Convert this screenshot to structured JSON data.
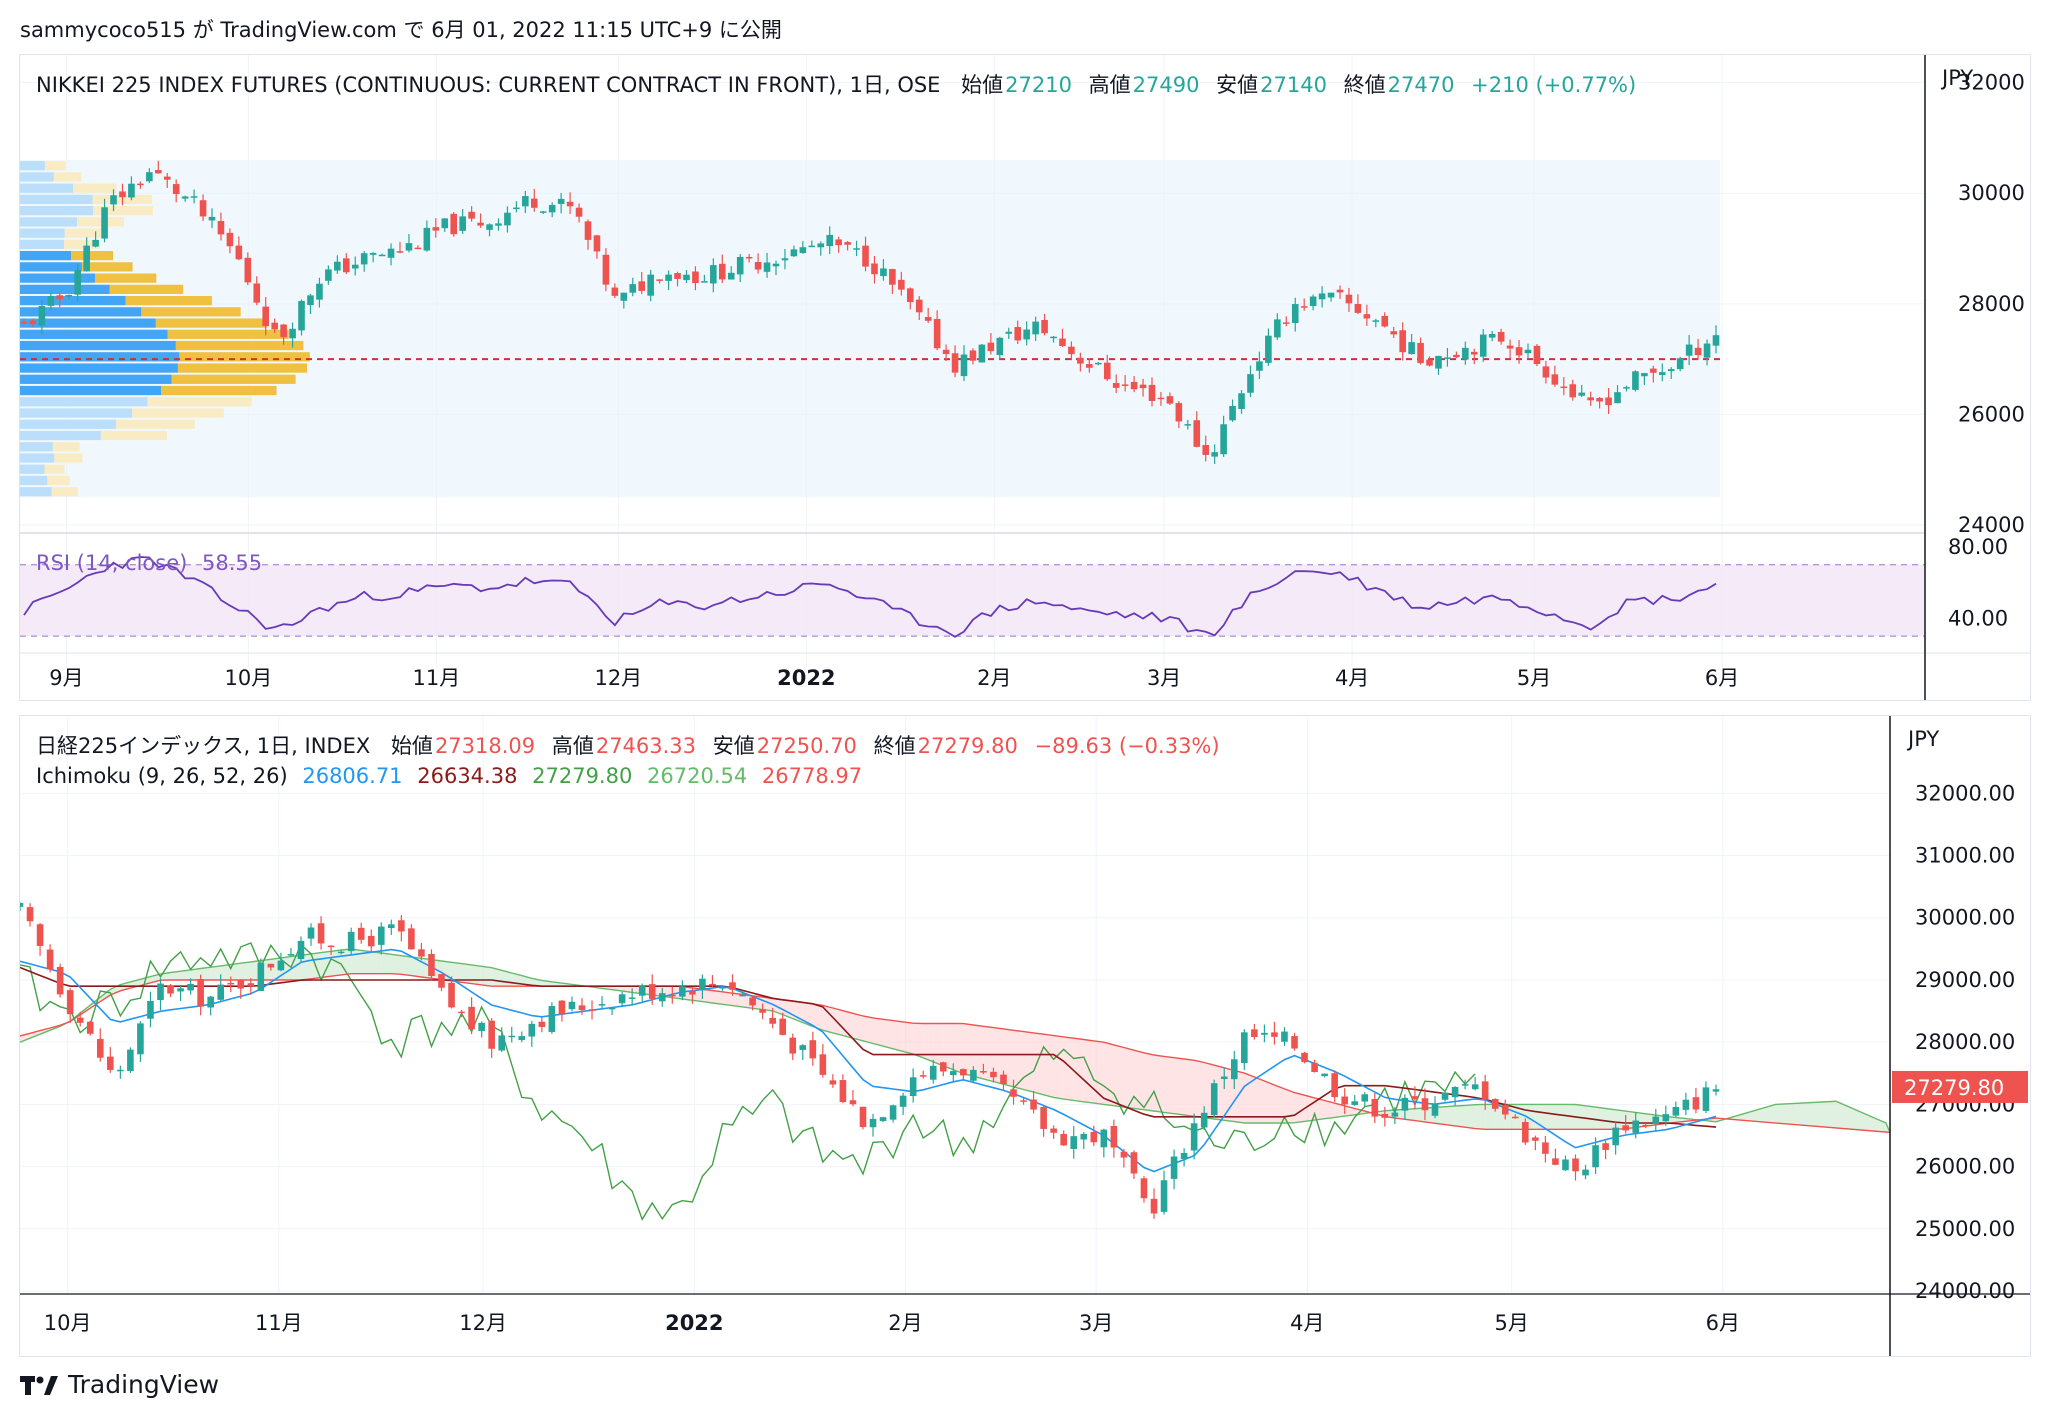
{
  "header": {
    "text": "sammycoco515 が TradingView.com で 6月 01, 2022 11:15 UTC+9 に公開"
  },
  "brand": {
    "name": "TradingView"
  },
  "colors": {
    "up": "#26a69a",
    "down": "#ef5350",
    "rsi": "#673ab7",
    "tenkan": "#2196f3",
    "kijun": "#8b1a1a",
    "chikou": "#43a047",
    "span_a": "#66bb6a",
    "span_b": "#ef5350"
  },
  "top": {
    "symbol": "NIKKEI 225 INDEX FUTURES (CONTINUOUS: CURRENT CONTRACT IN FRONT), 1日, OSE",
    "open_label": "始値",
    "open": "27210",
    "high_label": "高値",
    "high": "27490",
    "low_label": "安値",
    "low": "27140",
    "close_label": "終値",
    "close": "27470",
    "change": "+210 (+0.77%)",
    "currency": "JPY",
    "price_ticks": [
      "32000",
      "30000",
      "28000",
      "26000",
      "24000"
    ],
    "rsi_label": "RSI (14, close)",
    "rsi_value": "58.55",
    "rsi_ticks": [
      "80.00",
      "40.00"
    ],
    "months": [
      "9月",
      "10月",
      "11月",
      "12月",
      "2022",
      "2月",
      "3月",
      "4月",
      "5月",
      "6月"
    ]
  },
  "bottom": {
    "symbol": "日経225インデックス, 1日, INDEX",
    "open_label": "始値",
    "open": "27318.09",
    "high_label": "高値",
    "high": "27463.33",
    "low_label": "安値",
    "low": "27250.70",
    "close_label": "終値",
    "close": "27279.80",
    "change": "−89.63 (−0.33%)",
    "ichimoku_label": "Ichimoku (9, 26, 52, 26)",
    "ichimoku_values": [
      "26806.71",
      "26634.38",
      "27279.80",
      "26720.54",
      "26778.97"
    ],
    "currency": "JPY",
    "price_ticks": [
      "32000.00",
      "31000.00",
      "30000.00",
      "29000.00",
      "28000.00",
      "27000.00",
      "26000.00",
      "25000.00",
      "24000.00"
    ],
    "last_price": "27279.80",
    "months": [
      "10月",
      "11月",
      "12月",
      "2022",
      "2月",
      "3月",
      "4月",
      "5月",
      "6月"
    ]
  },
  "chart_data": [
    {
      "type": "candlestick",
      "title": "NIKKEI 225 INDEX FUTURES (CONTINUOUS: CURRENT CONTRACT IN FRONT), 1日, OSE",
      "ylim": [
        24000,
        32500
      ],
      "volume_profile_poc": 27000,
      "x": [
        "2021-08-25",
        "2021-09-01",
        "2021-09-08",
        "2021-09-14",
        "2021-09-22",
        "2021-09-29",
        "2021-10-06",
        "2021-10-13",
        "2021-10-20",
        "2021-10-27",
        "2021-11-03",
        "2021-11-10",
        "2021-11-17",
        "2021-11-24",
        "2021-11-30",
        "2021-12-07",
        "2021-12-14",
        "2021-12-21",
        "2021-12-28",
        "2022-01-05",
        "2022-01-12",
        "2022-01-19",
        "2022-01-26",
        "2022-02-02",
        "2022-02-09",
        "2022-02-16",
        "2022-02-23",
        "2022-03-02",
        "2022-03-09",
        "2022-03-16",
        "2022-03-23",
        "2022-03-30",
        "2022-04-06",
        "2022-04-13",
        "2022-04-20",
        "2022-04-27",
        "2022-05-04",
        "2022-05-11",
        "2022-05-18",
        "2022-05-25",
        "2022-05-31"
      ],
      "close": [
        27600,
        28200,
        29800,
        30400,
        29800,
        28900,
        27300,
        28500,
        28800,
        29000,
        29400,
        29500,
        29900,
        29700,
        28000,
        28600,
        28500,
        28700,
        28900,
        29100,
        28800,
        27900,
        26900,
        27300,
        27600,
        27000,
        26500,
        26300,
        25200,
        26800,
        28000,
        28100,
        27700,
        27000,
        27200,
        27400,
        26800,
        26100,
        26600,
        26900,
        27470
      ],
      "rsi": [
        44,
        56,
        70,
        73,
        61,
        46,
        33,
        45,
        52,
        54,
        58,
        57,
        61,
        58,
        38,
        48,
        47,
        51,
        55,
        60,
        50,
        40,
        32,
        45,
        50,
        44,
        42,
        40,
        30,
        52,
        66,
        66,
        56,
        46,
        50,
        52,
        44,
        36,
        50,
        51,
        58.55
      ]
    },
    {
      "type": "candlestick",
      "title": "日経225インデックス, 1日, INDEX",
      "ylim": [
        24000,
        32600
      ],
      "x": [
        "2021-09-24",
        "2021-10-01",
        "2021-10-08",
        "2021-10-15",
        "2021-10-22",
        "2021-10-29",
        "2021-11-05",
        "2021-11-12",
        "2021-11-19",
        "2021-11-26",
        "2021-12-03",
        "2021-12-10",
        "2021-12-17",
        "2021-12-24",
        "2021-12-31",
        "2022-01-07",
        "2022-01-14",
        "2022-01-21",
        "2022-01-28",
        "2022-02-04",
        "2022-02-11",
        "2022-02-18",
        "2022-02-25",
        "2022-03-04",
        "2022-03-11",
        "2022-03-18",
        "2022-03-25",
        "2022-04-01",
        "2022-04-08",
        "2022-04-15",
        "2022-04-22",
        "2022-04-29",
        "2022-05-06",
        "2022-05-13",
        "2022-05-20",
        "2022-05-27",
        "2022-05-31"
      ],
      "close": [
        30100,
        28700,
        27400,
        28900,
        28700,
        29100,
        29700,
        29600,
        29800,
        28700,
        28000,
        28400,
        28600,
        28800,
        28900,
        29000,
        28300,
        27500,
        26700,
        27500,
        27600,
        27100,
        26500,
        26500,
        25300,
        26800,
        28100,
        28000,
        27200,
        26900,
        27100,
        27300,
        26500,
        25900,
        26700,
        26800,
        27279.8
      ],
      "tenkan": [
        29300,
        29100,
        28300,
        28500,
        28600,
        28800,
        29300,
        29400,
        29500,
        29100,
        28600,
        28400,
        28500,
        28600,
        28800,
        28900,
        28600,
        28200,
        27300,
        27200,
        27400,
        27200,
        26900,
        26500,
        25900,
        26200,
        27300,
        27800,
        27500,
        27100,
        27000,
        27100,
        26800,
        26300,
        26500,
        26600,
        26806.71
      ],
      "kijun": [
        29200,
        28900,
        28900,
        28900,
        28900,
        28900,
        29000,
        29000,
        29000,
        29000,
        29000,
        28900,
        28900,
        28900,
        28900,
        28900,
        28700,
        28600,
        27800,
        27800,
        27800,
        27800,
        27800,
        27100,
        26800,
        26800,
        26800,
        26800,
        27300,
        27300,
        27200,
        27100,
        26900,
        26800,
        26700,
        26700,
        26634.38
      ],
      "span_a": [
        28000,
        28300,
        28900,
        29100,
        29200,
        29300,
        29400,
        29500,
        29400,
        29300,
        29200,
        29000,
        28900,
        28800,
        28700,
        28600,
        28500,
        28200,
        28000,
        27800,
        27500,
        27300,
        27100,
        27000,
        26900,
        26800,
        26700,
        26700,
        26800,
        26900,
        26950,
        27000,
        27000,
        27000,
        26900,
        26800,
        26720.54
      ],
      "span_b": [
        28100,
        28300,
        28800,
        29000,
        29000,
        29000,
        29000,
        29100,
        29100,
        29000,
        28900,
        28900,
        28900,
        28900,
        28900,
        28800,
        28700,
        28600,
        28400,
        28300,
        28300,
        28200,
        28100,
        28000,
        27800,
        27700,
        27500,
        27200,
        27000,
        26800,
        26700,
        26600,
        26600,
        26600,
        26600,
        26700,
        26778.97
      ],
      "chikou": [
        29000,
        28400,
        28600,
        29200,
        29400,
        29300,
        29500,
        29000,
        28000,
        28300,
        28200,
        27000,
        26500,
        25500,
        25200,
        26500,
        27000,
        26200,
        26000,
        26800,
        26300,
        27000,
        27800,
        27400,
        27000,
        26500,
        26300,
        26800,
        26600,
        27100,
        27200,
        27279.8
      ]
    }
  ]
}
